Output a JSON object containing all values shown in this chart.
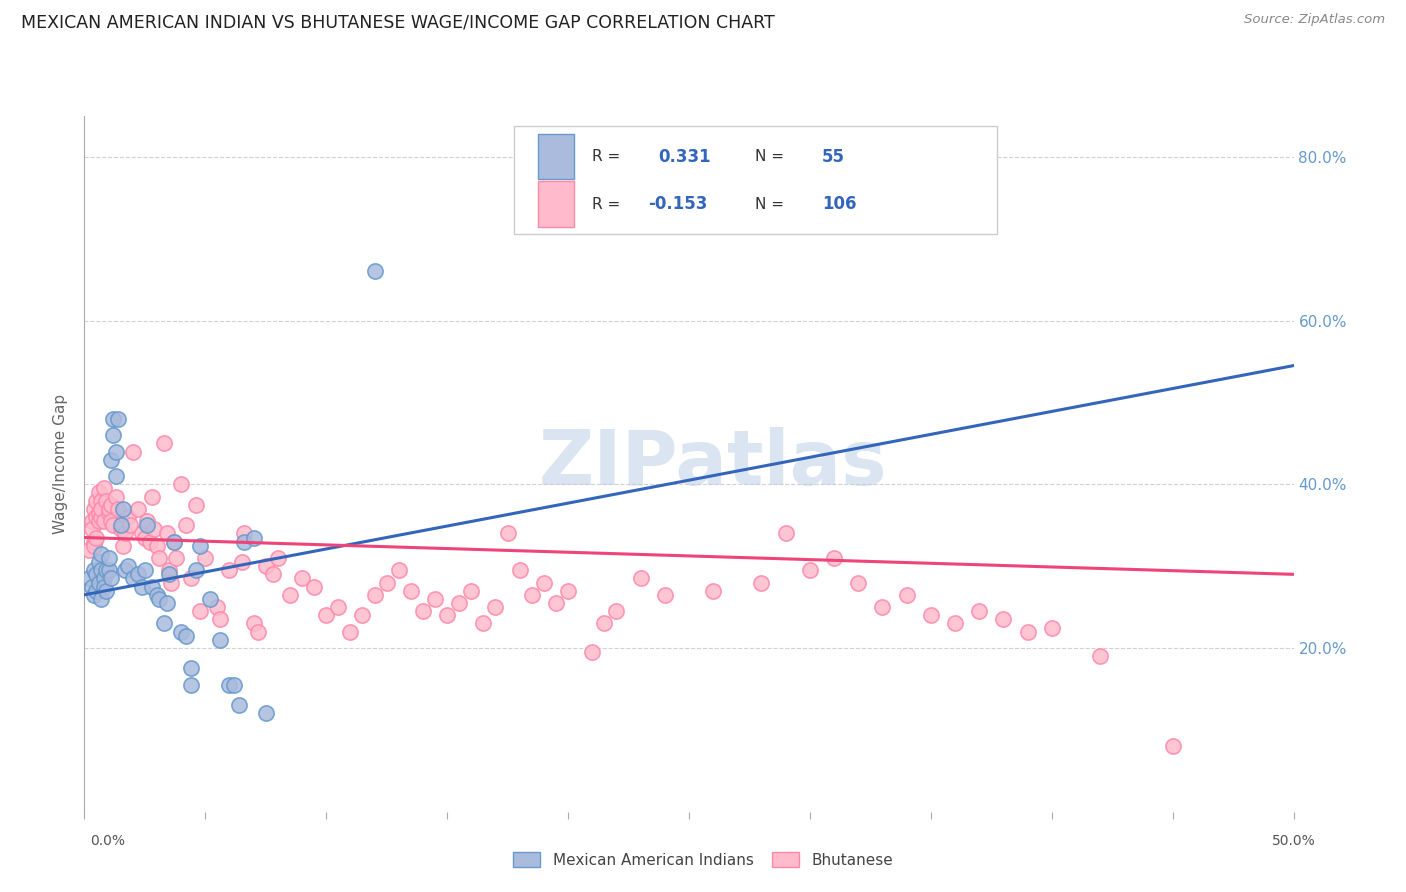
{
  "title": "MEXICAN AMERICAN INDIAN VS BHUTANESE WAGE/INCOME GAP CORRELATION CHART",
  "source": "Source: ZipAtlas.com",
  "ylabel": "Wage/Income Gap",
  "watermark": "ZIPatlas",
  "xlim": [
    0.0,
    0.5
  ],
  "ylim": [
    0.0,
    0.85
  ],
  "right_ytick_vals": [
    0.2,
    0.4,
    0.6,
    0.8
  ],
  "right_ytick_labels": [
    "20.0%",
    "40.0%",
    "60.0%",
    "80.0%"
  ],
  "blue_color": "#aabbdd",
  "blue_edge_color": "#6699cc",
  "pink_color": "#ffbbcc",
  "pink_edge_color": "#ff88aa",
  "blue_line_color": "#3366bb",
  "pink_line_color": "#ee4477",
  "blue_scatter": [
    [
      0.002,
      0.285
    ],
    [
      0.003,
      0.275
    ],
    [
      0.004,
      0.265
    ],
    [
      0.004,
      0.295
    ],
    [
      0.005,
      0.27
    ],
    [
      0.005,
      0.29
    ],
    [
      0.006,
      0.28
    ],
    [
      0.006,
      0.305
    ],
    [
      0.007,
      0.26
    ],
    [
      0.007,
      0.315
    ],
    [
      0.007,
      0.295
    ],
    [
      0.008,
      0.285
    ],
    [
      0.008,
      0.275
    ],
    [
      0.009,
      0.295
    ],
    [
      0.009,
      0.27
    ],
    [
      0.01,
      0.295
    ],
    [
      0.01,
      0.31
    ],
    [
      0.011,
      0.285
    ],
    [
      0.011,
      0.43
    ],
    [
      0.012,
      0.46
    ],
    [
      0.012,
      0.48
    ],
    [
      0.013,
      0.44
    ],
    [
      0.013,
      0.41
    ],
    [
      0.014,
      0.48
    ],
    [
      0.015,
      0.35
    ],
    [
      0.016,
      0.37
    ],
    [
      0.017,
      0.295
    ],
    [
      0.018,
      0.3
    ],
    [
      0.02,
      0.285
    ],
    [
      0.022,
      0.29
    ],
    [
      0.024,
      0.275
    ],
    [
      0.025,
      0.295
    ],
    [
      0.026,
      0.35
    ],
    [
      0.028,
      0.275
    ],
    [
      0.03,
      0.265
    ],
    [
      0.031,
      0.26
    ],
    [
      0.033,
      0.23
    ],
    [
      0.034,
      0.255
    ],
    [
      0.035,
      0.29
    ],
    [
      0.037,
      0.33
    ],
    [
      0.04,
      0.22
    ],
    [
      0.042,
      0.215
    ],
    [
      0.044,
      0.155
    ],
    [
      0.044,
      0.175
    ],
    [
      0.046,
      0.295
    ],
    [
      0.048,
      0.325
    ],
    [
      0.052,
      0.26
    ],
    [
      0.056,
      0.21
    ],
    [
      0.06,
      0.155
    ],
    [
      0.062,
      0.155
    ],
    [
      0.064,
      0.13
    ],
    [
      0.066,
      0.33
    ],
    [
      0.07,
      0.335
    ],
    [
      0.075,
      0.12
    ],
    [
      0.12,
      0.66
    ]
  ],
  "pink_scatter": [
    [
      0.002,
      0.32
    ],
    [
      0.003,
      0.355
    ],
    [
      0.003,
      0.345
    ],
    [
      0.004,
      0.33
    ],
    [
      0.004,
      0.325
    ],
    [
      0.004,
      0.37
    ],
    [
      0.005,
      0.335
    ],
    [
      0.005,
      0.36
    ],
    [
      0.005,
      0.38
    ],
    [
      0.006,
      0.365
    ],
    [
      0.006,
      0.355
    ],
    [
      0.006,
      0.39
    ],
    [
      0.007,
      0.36
    ],
    [
      0.007,
      0.38
    ],
    [
      0.007,
      0.37
    ],
    [
      0.008,
      0.355
    ],
    [
      0.008,
      0.395
    ],
    [
      0.009,
      0.38
    ],
    [
      0.01,
      0.365
    ],
    [
      0.01,
      0.37
    ],
    [
      0.011,
      0.375
    ],
    [
      0.011,
      0.355
    ],
    [
      0.012,
      0.35
    ],
    [
      0.013,
      0.385
    ],
    [
      0.014,
      0.37
    ],
    [
      0.015,
      0.345
    ],
    [
      0.016,
      0.325
    ],
    [
      0.017,
      0.34
    ],
    [
      0.018,
      0.36
    ],
    [
      0.019,
      0.35
    ],
    [
      0.02,
      0.44
    ],
    [
      0.022,
      0.37
    ],
    [
      0.024,
      0.34
    ],
    [
      0.025,
      0.335
    ],
    [
      0.026,
      0.355
    ],
    [
      0.027,
      0.33
    ],
    [
      0.028,
      0.385
    ],
    [
      0.029,
      0.345
    ],
    [
      0.03,
      0.325
    ],
    [
      0.031,
      0.31
    ],
    [
      0.033,
      0.45
    ],
    [
      0.034,
      0.34
    ],
    [
      0.035,
      0.295
    ],
    [
      0.036,
      0.28
    ],
    [
      0.037,
      0.33
    ],
    [
      0.038,
      0.31
    ],
    [
      0.04,
      0.4
    ],
    [
      0.042,
      0.35
    ],
    [
      0.044,
      0.285
    ],
    [
      0.046,
      0.375
    ],
    [
      0.048,
      0.245
    ],
    [
      0.05,
      0.31
    ],
    [
      0.055,
      0.25
    ],
    [
      0.056,
      0.235
    ],
    [
      0.06,
      0.295
    ],
    [
      0.065,
      0.305
    ],
    [
      0.066,
      0.34
    ],
    [
      0.07,
      0.23
    ],
    [
      0.072,
      0.22
    ],
    [
      0.075,
      0.3
    ],
    [
      0.078,
      0.29
    ],
    [
      0.08,
      0.31
    ],
    [
      0.085,
      0.265
    ],
    [
      0.09,
      0.285
    ],
    [
      0.095,
      0.275
    ],
    [
      0.1,
      0.24
    ],
    [
      0.105,
      0.25
    ],
    [
      0.11,
      0.22
    ],
    [
      0.115,
      0.24
    ],
    [
      0.12,
      0.265
    ],
    [
      0.125,
      0.28
    ],
    [
      0.13,
      0.295
    ],
    [
      0.135,
      0.27
    ],
    [
      0.14,
      0.245
    ],
    [
      0.145,
      0.26
    ],
    [
      0.15,
      0.24
    ],
    [
      0.155,
      0.255
    ],
    [
      0.16,
      0.27
    ],
    [
      0.165,
      0.23
    ],
    [
      0.17,
      0.25
    ],
    [
      0.175,
      0.34
    ],
    [
      0.18,
      0.295
    ],
    [
      0.185,
      0.265
    ],
    [
      0.19,
      0.28
    ],
    [
      0.195,
      0.255
    ],
    [
      0.2,
      0.27
    ],
    [
      0.21,
      0.195
    ],
    [
      0.215,
      0.23
    ],
    [
      0.22,
      0.245
    ],
    [
      0.23,
      0.285
    ],
    [
      0.24,
      0.265
    ],
    [
      0.26,
      0.27
    ],
    [
      0.28,
      0.28
    ],
    [
      0.29,
      0.34
    ],
    [
      0.3,
      0.295
    ],
    [
      0.31,
      0.31
    ],
    [
      0.32,
      0.28
    ],
    [
      0.33,
      0.25
    ],
    [
      0.34,
      0.265
    ],
    [
      0.35,
      0.24
    ],
    [
      0.36,
      0.23
    ],
    [
      0.37,
      0.245
    ],
    [
      0.38,
      0.235
    ],
    [
      0.39,
      0.22
    ],
    [
      0.4,
      0.225
    ],
    [
      0.42,
      0.19
    ],
    [
      0.45,
      0.08
    ]
  ],
  "blue_line": {
    "x0": 0.0,
    "y0": 0.265,
    "x1": 0.5,
    "y1": 0.545
  },
  "pink_line": {
    "x0": 0.0,
    "y0": 0.335,
    "x1": 0.5,
    "y1": 0.29
  },
  "legend_labels": [
    "Mexican American Indians",
    "Bhutanese"
  ],
  "background_color": "#ffffff",
  "grid_color": "#cccccc"
}
